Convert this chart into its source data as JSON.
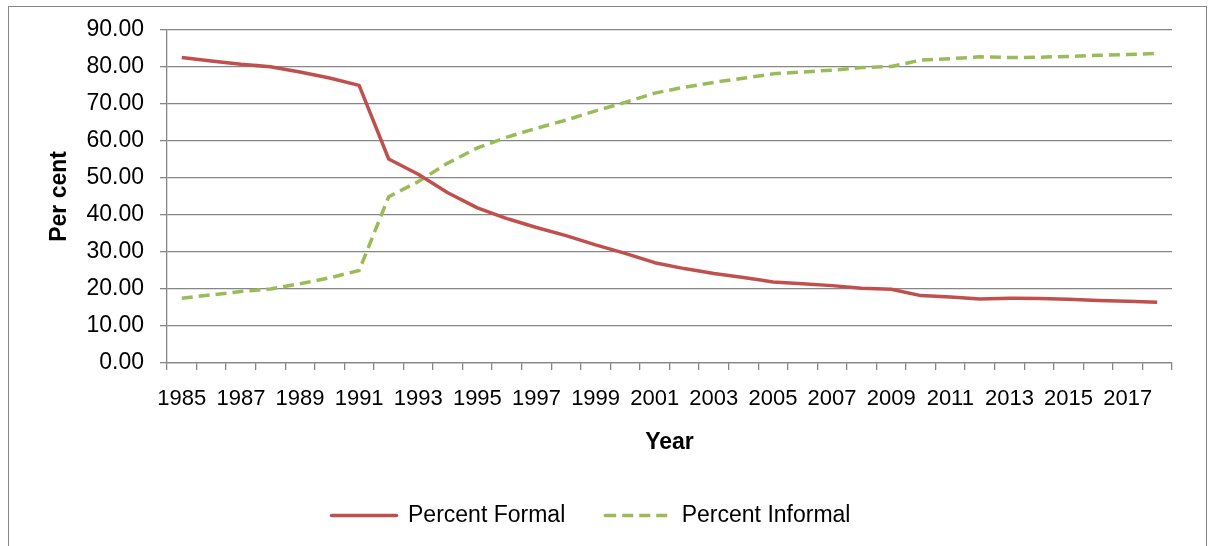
{
  "chart_data": {
    "type": "line",
    "xlabel": "Year",
    "ylabel": "Per cent",
    "categories": [
      "1985",
      null,
      "1987",
      null,
      "1989",
      null,
      "1991",
      null,
      "1993",
      null,
      "1995",
      null,
      "1997",
      null,
      "1999",
      null,
      "2001",
      null,
      "2003",
      null,
      "2005",
      null,
      "2007",
      null,
      "2009",
      null,
      "2011",
      null,
      "2013",
      null,
      "2015",
      null,
      "2017",
      null
    ],
    "series": [
      {
        "name": "Percent Formal",
        "color": "#c0504d",
        "line_style": "solid",
        "values": [
          82.5,
          81.6,
          80.7,
          80.0,
          78.6,
          77.0,
          75.0,
          55.1,
          51.0,
          46.0,
          41.9,
          39.0,
          36.6,
          34.4,
          31.9,
          29.6,
          27.1,
          25.5,
          24.2,
          23.1,
          21.9,
          21.4,
          20.9,
          20.2,
          19.9,
          18.2,
          17.8,
          17.3,
          17.5,
          17.4,
          17.2,
          16.9,
          16.7,
          16.4
        ]
      },
      {
        "name": "Percent Informal",
        "color": "#9bbb59",
        "line_style": "dashed",
        "values": [
          17.5,
          18.4,
          19.3,
          20.0,
          21.4,
          23.0,
          25.0,
          44.9,
          49.0,
          54.0,
          58.1,
          61.0,
          63.4,
          65.6,
          68.1,
          70.4,
          72.9,
          74.5,
          75.8,
          76.9,
          78.1,
          78.6,
          79.1,
          79.8,
          80.1,
          81.8,
          82.2,
          82.7,
          82.5,
          82.6,
          82.8,
          83.1,
          83.3,
          83.6
        ]
      }
    ],
    "ylim": [
      0,
      90
    ],
    "yticks": [
      {
        "value": 0,
        "label": "0.00"
      },
      {
        "value": 10,
        "label": "10.00"
      },
      {
        "value": 20,
        "label": "20.00"
      },
      {
        "value": 30,
        "label": "30.00"
      },
      {
        "value": 40,
        "label": "40.00"
      },
      {
        "value": 50,
        "label": "50.00"
      },
      {
        "value": 60,
        "label": "60.00"
      },
      {
        "value": 70,
        "label": "70.00"
      },
      {
        "value": 80,
        "label": "80.00"
      },
      {
        "value": 90,
        "label": "90.00"
      }
    ],
    "grid": "y",
    "legend": "bottom",
    "marker": "none"
  }
}
